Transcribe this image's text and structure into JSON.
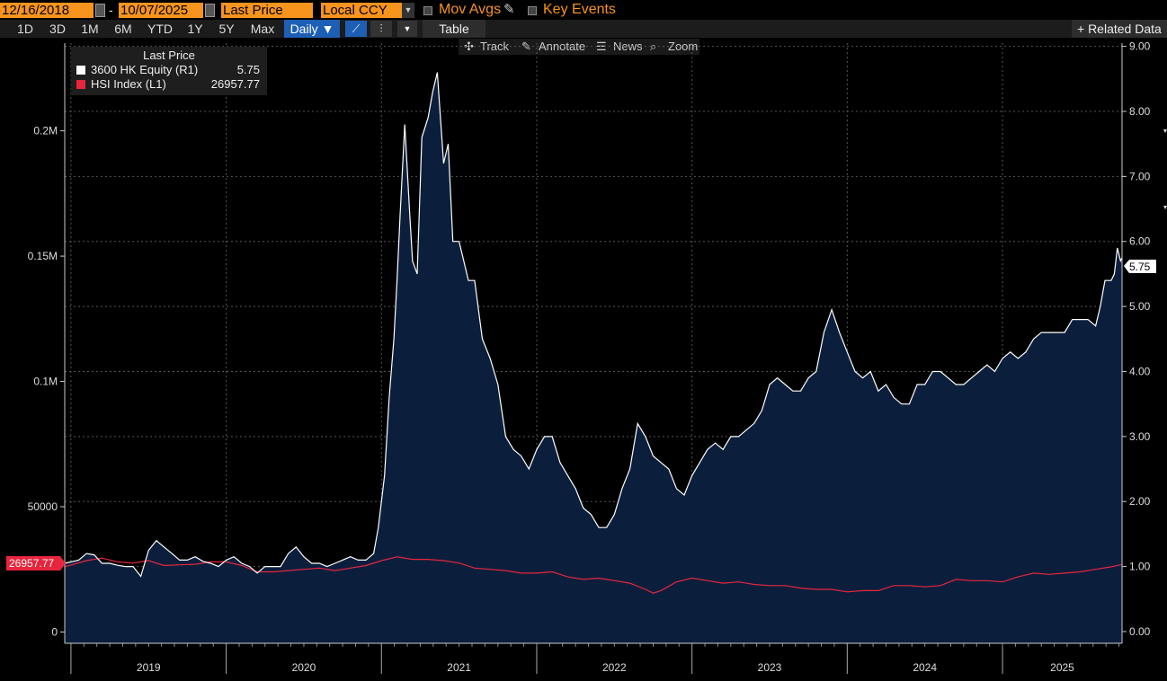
{
  "toolbar": {
    "start_date": "12/16/2018",
    "separator": "-",
    "end_date": "10/07/2025",
    "field": "Last Price",
    "currency": "Local CCY",
    "mov_avgs_label": "Mov Avgs",
    "key_events_label": "Key Events",
    "periods": [
      "1D",
      "3D",
      "1M",
      "6M",
      "YTD",
      "1Y",
      "5Y",
      "Max"
    ],
    "frequency": "Daily ▼",
    "table_label": "Table",
    "related_label": "+ Related Data",
    "sub_tools": [
      "Track",
      "Annotate",
      "News",
      "Zoom"
    ]
  },
  "legend": {
    "title": "Last Price",
    "series": [
      {
        "name": "3600 HK Equity  (R1)",
        "value": "5.75",
        "color": "#ffffff"
      },
      {
        "name": "HSI Index  (L1)",
        "value": "26957.77",
        "color": "#e8253c"
      }
    ]
  },
  "badges": {
    "right": "5.75",
    "left": "26957.77"
  },
  "colors": {
    "area": "#0b1f3d",
    "equity_line": "#ffffff",
    "index_line": "#e8253c",
    "grid": "#555555",
    "accent": "#f7941d"
  },
  "chart_data": {
    "type": "line",
    "title": "Last Price",
    "x_labels": [
      "2019",
      "2020",
      "2021",
      "2022",
      "2023",
      "2024",
      "2025"
    ],
    "x_range": [
      2018.96,
      2025.77
    ],
    "right_axis": {
      "label": "3600 HK Equity (R1)",
      "ylim": [
        -0.18,
        9.05
      ],
      "ticks": [
        "0.00",
        "1.00",
        "2.00",
        "3.00",
        "4.00",
        "5.00",
        "6.00",
        "7.00",
        "8.00",
        "9.00"
      ]
    },
    "left_axis": {
      "label": "HSI Index (L1)",
      "ylim": [
        -4500,
        235000
      ],
      "ticks": [
        "0",
        "50000",
        "0.1M",
        "0.15M",
        "0.2M"
      ]
    },
    "series": [
      {
        "name": "3600 HK Equity",
        "axis": "right",
        "x": [
          2018.96,
          2019.05,
          2019.1,
          2019.15,
          2019.2,
          2019.25,
          2019.3,
          2019.35,
          2019.4,
          2019.45,
          2019.5,
          2019.55,
          2019.6,
          2019.65,
          2019.7,
          2019.75,
          2019.8,
          2019.85,
          2019.9,
          2019.95,
          2020.0,
          2020.05,
          2020.1,
          2020.15,
          2020.2,
          2020.25,
          2020.3,
          2020.35,
          2020.4,
          2020.45,
          2020.5,
          2020.55,
          2020.6,
          2020.65,
          2020.7,
          2020.75,
          2020.8,
          2020.85,
          2020.9,
          2020.95,
          2020.98,
          2021.02,
          2021.05,
          2021.08,
          2021.1,
          2021.12,
          2021.15,
          2021.18,
          2021.2,
          2021.23,
          2021.26,
          2021.3,
          2021.33,
          2021.36,
          2021.4,
          2021.43,
          2021.46,
          2021.5,
          2021.53,
          2021.56,
          2021.6,
          2021.65,
          2021.7,
          2021.75,
          2021.8,
          2021.85,
          2021.9,
          2021.95,
          2022.0,
          2022.05,
          2022.1,
          2022.15,
          2022.2,
          2022.25,
          2022.3,
          2022.35,
          2022.4,
          2022.45,
          2022.5,
          2022.55,
          2022.6,
          2022.65,
          2022.7,
          2022.75,
          2022.8,
          2022.85,
          2022.9,
          2022.95,
          2023.0,
          2023.05,
          2023.1,
          2023.15,
          2023.2,
          2023.25,
          2023.3,
          2023.35,
          2023.4,
          2023.45,
          2023.5,
          2023.55,
          2023.6,
          2023.65,
          2023.7,
          2023.75,
          2023.8,
          2023.85,
          2023.9,
          2023.95,
          2024.0,
          2024.05,
          2024.1,
          2024.15,
          2024.2,
          2024.25,
          2024.3,
          2024.35,
          2024.4,
          2024.45,
          2024.5,
          2024.55,
          2024.6,
          2024.65,
          2024.7,
          2024.75,
          2024.8,
          2024.85,
          2024.9,
          2024.95,
          2025.0,
          2025.05,
          2025.1,
          2025.15,
          2025.2,
          2025.25,
          2025.3,
          2025.35,
          2025.4,
          2025.45,
          2025.5,
          2025.55,
          2025.6,
          2025.63,
          2025.66,
          2025.7,
          2025.72,
          2025.74,
          2025.76,
          2025.77
        ],
        "y": [
          1.05,
          1.1,
          1.2,
          1.18,
          1.05,
          1.05,
          1.02,
          1.0,
          1.0,
          0.85,
          1.25,
          1.4,
          1.3,
          1.2,
          1.1,
          1.1,
          1.15,
          1.08,
          1.05,
          1.0,
          1.1,
          1.15,
          1.05,
          1.0,
          0.9,
          1.0,
          1.0,
          1.0,
          1.2,
          1.3,
          1.15,
          1.05,
          1.05,
          1.0,
          1.05,
          1.1,
          1.15,
          1.1,
          1.1,
          1.2,
          1.6,
          2.4,
          3.6,
          4.5,
          5.4,
          6.4,
          7.8,
          6.5,
          5.7,
          5.5,
          7.6,
          7.9,
          8.3,
          8.6,
          7.2,
          7.5,
          6.0,
          6.0,
          5.7,
          5.4,
          5.4,
          4.5,
          4.2,
          3.8,
          3.0,
          2.8,
          2.7,
          2.5,
          2.8,
          3.0,
          3.0,
          2.6,
          2.4,
          2.2,
          1.9,
          1.8,
          1.6,
          1.6,
          1.8,
          2.2,
          2.5,
          3.2,
          3.0,
          2.7,
          2.6,
          2.5,
          2.2,
          2.1,
          2.4,
          2.6,
          2.8,
          2.9,
          2.8,
          3.0,
          3.0,
          3.1,
          3.2,
          3.4,
          3.8,
          3.9,
          3.8,
          3.7,
          3.7,
          3.9,
          4.0,
          4.6,
          4.95,
          4.6,
          4.3,
          4.0,
          3.9,
          4.0,
          3.7,
          3.8,
          3.6,
          3.5,
          3.5,
          3.8,
          3.8,
          4.0,
          4.0,
          3.9,
          3.8,
          3.8,
          3.9,
          4.0,
          4.1,
          4.0,
          4.2,
          4.3,
          4.2,
          4.3,
          4.5,
          4.6,
          4.6,
          4.6,
          4.6,
          4.8,
          4.8,
          4.8,
          4.7,
          5.0,
          5.4,
          5.4,
          5.5,
          5.9,
          5.7,
          5.75
        ]
      },
      {
        "name": "HSI Index",
        "axis": "left",
        "x": [
          2018.96,
          2019.1,
          2019.2,
          2019.3,
          2019.4,
          2019.5,
          2019.6,
          2019.7,
          2019.8,
          2019.9,
          2020.0,
          2020.1,
          2020.2,
          2020.3,
          2020.4,
          2020.5,
          2020.6,
          2020.7,
          2020.8,
          2020.9,
          2021.0,
          2021.1,
          2021.2,
          2021.3,
          2021.4,
          2021.5,
          2021.6,
          2021.7,
          2021.8,
          2021.9,
          2022.0,
          2022.1,
          2022.2,
          2022.3,
          2022.4,
          2022.5,
          2022.6,
          2022.7,
          2022.75,
          2022.8,
          2022.9,
          2023.0,
          2023.1,
          2023.2,
          2023.3,
          2023.4,
          2023.5,
          2023.6,
          2023.7,
          2023.8,
          2023.9,
          2024.0,
          2024.1,
          2024.2,
          2024.3,
          2024.4,
          2024.5,
          2024.6,
          2024.7,
          2024.8,
          2024.9,
          2025.0,
          2025.1,
          2025.2,
          2025.3,
          2025.4,
          2025.5,
          2025.6,
          2025.7,
          2025.77
        ],
        "y": [
          26000,
          28500,
          29500,
          28000,
          27500,
          28500,
          26500,
          26800,
          27000,
          28000,
          28000,
          26500,
          24000,
          24000,
          24500,
          25000,
          25500,
          24500,
          25500,
          26500,
          28500,
          30000,
          29000,
          29000,
          28500,
          27500,
          25500,
          25000,
          24500,
          23500,
          23500,
          24000,
          22000,
          21000,
          21500,
          20500,
          19500,
          17000,
          15500,
          16500,
          20000,
          21500,
          20500,
          19500,
          20000,
          19000,
          18500,
          18500,
          17500,
          17000,
          17000,
          16000,
          16500,
          16500,
          18500,
          18500,
          18000,
          18500,
          21000,
          20500,
          20500,
          20000,
          22000,
          23500,
          23000,
          23500,
          24000,
          25000,
          26000,
          26957.77
        ]
      }
    ]
  }
}
